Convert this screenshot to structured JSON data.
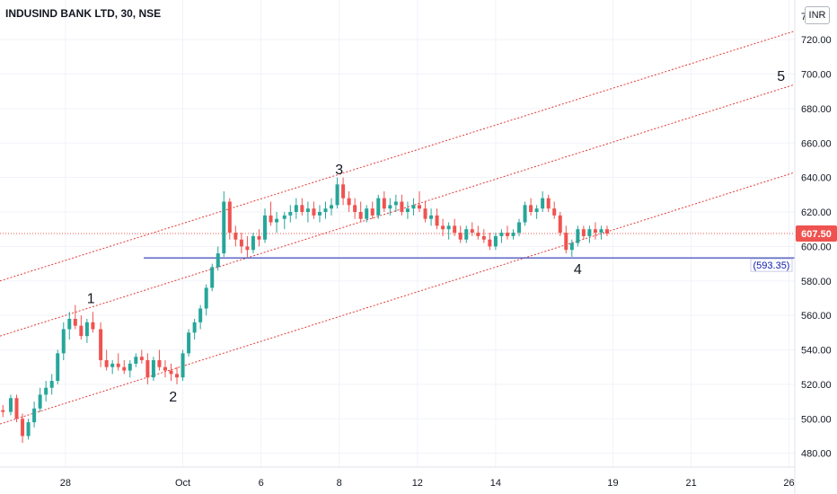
{
  "header": {
    "title": "INDUSIND BANK LTD, 30, NSE",
    "currency": "INR"
  },
  "colors": {
    "up": "#26a69a",
    "down": "#ef5350",
    "channel": "#e53935",
    "support": "#0d1bab",
    "price_badge": "#ef5350"
  },
  "chart_data": {
    "type": "candlestick",
    "ylim": [
      472,
      743
    ],
    "y_ticks": [
      480,
      500,
      520,
      540,
      560,
      580,
      600,
      620,
      640,
      660,
      680,
      700,
      720
    ],
    "y_tick_labels": [
      "480.00",
      "500.00",
      "520.00",
      "540.00",
      "560.00",
      "580.00",
      "600.00",
      "620.00",
      "640.00",
      "660.00",
      "680.00",
      "700.00",
      "720.00"
    ],
    "y_top_partial_label": "7",
    "xlim": [
      -3.35,
      37.3
    ],
    "x_ticks": [
      {
        "label": "28",
        "t": 0
      },
      {
        "label": "Oct",
        "t": 6
      },
      {
        "label": "6",
        "t": 10
      },
      {
        "label": "8",
        "t": 14
      },
      {
        "label": "12",
        "t": 18
      },
      {
        "label": "14",
        "t": 22
      },
      {
        "label": "19",
        "t": 28
      },
      {
        "label": "21",
        "t": 32
      },
      {
        "label": "26",
        "t": 37
      }
    ],
    "series": [
      {
        "values": [
          [
            -3.2,
            505,
            508,
            501,
            504
          ],
          [
            -2.8,
            504,
            514,
            502,
            512
          ],
          [
            -2.5,
            512,
            514,
            498,
            500
          ],
          [
            -2.2,
            500,
            503,
            486,
            490
          ],
          [
            -1.9,
            490,
            500,
            488,
            498
          ],
          [
            -1.6,
            498,
            510,
            495,
            506
          ],
          [
            -1.3,
            506,
            518,
            504,
            514
          ],
          [
            -1.0,
            514,
            522,
            510,
            518
          ],
          [
            -0.7,
            518,
            526,
            514,
            522
          ],
          [
            -0.4,
            522,
            540,
            520,
            538
          ],
          [
            -0.1,
            538,
            556,
            534,
            552
          ],
          [
            0.2,
            552,
            562,
            546,
            558
          ],
          [
            0.5,
            558,
            566,
            552,
            554
          ],
          [
            0.8,
            554,
            560,
            546,
            548
          ],
          [
            1.1,
            548,
            558,
            544,
            556
          ],
          [
            1.4,
            556,
            562,
            550,
            552
          ],
          [
            1.8,
            552,
            556,
            530,
            534
          ],
          [
            2.1,
            534,
            540,
            528,
            530
          ],
          [
            2.4,
            530,
            534,
            526,
            532
          ],
          [
            2.7,
            532,
            538,
            528,
            530
          ],
          [
            3.0,
            530,
            534,
            526,
            528
          ],
          [
            3.3,
            528,
            534,
            524,
            532
          ],
          [
            3.6,
            532,
            538,
            530,
            536
          ],
          [
            3.9,
            536,
            540,
            532,
            534
          ],
          [
            4.2,
            534,
            538,
            520,
            524
          ],
          [
            4.5,
            524,
            536,
            522,
            534
          ],
          [
            4.8,
            534,
            540,
            528,
            530
          ],
          [
            5.1,
            530,
            534,
            524,
            528
          ],
          [
            5.4,
            528,
            532,
            522,
            526
          ],
          [
            5.7,
            526,
            530,
            520,
            524
          ],
          [
            6.0,
            524,
            540,
            522,
            538
          ],
          [
            6.3,
            538,
            552,
            536,
            550
          ],
          [
            6.6,
            550,
            558,
            546,
            556
          ],
          [
            6.9,
            556,
            566,
            552,
            564
          ],
          [
            7.2,
            564,
            578,
            560,
            576
          ],
          [
            7.5,
            576,
            590,
            574,
            588
          ],
          [
            7.8,
            588,
            600,
            586,
            596
          ],
          [
            8.1,
            596,
            632,
            594,
            626
          ],
          [
            8.4,
            626,
            628,
            604,
            608
          ],
          [
            8.7,
            608,
            612,
            600,
            604
          ],
          [
            9.0,
            604,
            608,
            596,
            600
          ],
          [
            9.3,
            600,
            606,
            594,
            598
          ],
          [
            9.6,
            598,
            608,
            596,
            606
          ],
          [
            9.9,
            606,
            610,
            600,
            604
          ],
          [
            10.2,
            604,
            622,
            602,
            618
          ],
          [
            10.5,
            618,
            626,
            612,
            614
          ],
          [
            10.8,
            614,
            620,
            608,
            616
          ],
          [
            11.2,
            616,
            620,
            610,
            618
          ],
          [
            11.5,
            618,
            624,
            614,
            620
          ],
          [
            11.8,
            620,
            628,
            616,
            624
          ],
          [
            12.1,
            624,
            628,
            618,
            620
          ],
          [
            12.4,
            620,
            626,
            614,
            622
          ],
          [
            12.7,
            622,
            626,
            616,
            618
          ],
          [
            13.0,
            618,
            624,
            614,
            620
          ],
          [
            13.3,
            620,
            626,
            616,
            622
          ],
          [
            13.6,
            622,
            628,
            618,
            624
          ],
          [
            13.9,
            624,
            640,
            622,
            636
          ],
          [
            14.2,
            636,
            640,
            624,
            628
          ],
          [
            14.5,
            628,
            632,
            620,
            624
          ],
          [
            14.8,
            624,
            628,
            616,
            620
          ],
          [
            15.1,
            620,
            626,
            614,
            616
          ],
          [
            15.4,
            616,
            624,
            614,
            622
          ],
          [
            15.7,
            622,
            626,
            616,
            618
          ],
          [
            16.0,
            618,
            630,
            616,
            628
          ],
          [
            16.3,
            628,
            632,
            620,
            622
          ],
          [
            16.6,
            622,
            628,
            618,
            624
          ],
          [
            16.9,
            624,
            630,
            620,
            626
          ],
          [
            17.2,
            626,
            630,
            618,
            620
          ],
          [
            17.5,
            620,
            626,
            616,
            622
          ],
          [
            17.8,
            622,
            628,
            618,
            624
          ],
          [
            18.1,
            624,
            632,
            620,
            622
          ],
          [
            18.4,
            622,
            626,
            614,
            616
          ],
          [
            18.7,
            616,
            622,
            612,
            618
          ],
          [
            19.0,
            618,
            622,
            610,
            612
          ],
          [
            19.3,
            612,
            616,
            606,
            610
          ],
          [
            19.6,
            610,
            614,
            604,
            612
          ],
          [
            19.9,
            612,
            616,
            606,
            608
          ],
          [
            20.2,
            608,
            612,
            602,
            604
          ],
          [
            20.5,
            604,
            612,
            602,
            610
          ],
          [
            20.8,
            610,
            614,
            606,
            608
          ],
          [
            21.1,
            608,
            612,
            604,
            606
          ],
          [
            21.4,
            606,
            610,
            602,
            604
          ],
          [
            21.7,
            604,
            608,
            598,
            600
          ],
          [
            22.0,
            600,
            608,
            598,
            606
          ],
          [
            22.3,
            606,
            610,
            602,
            608
          ],
          [
            22.6,
            608,
            612,
            604,
            606
          ],
          [
            22.9,
            606,
            610,
            604,
            608
          ],
          [
            23.2,
            608,
            616,
            606,
            614
          ],
          [
            23.5,
            614,
            626,
            612,
            624
          ],
          [
            23.8,
            624,
            628,
            618,
            620
          ],
          [
            24.1,
            620,
            624,
            616,
            622
          ],
          [
            24.4,
            622,
            632,
            620,
            628
          ],
          [
            24.7,
            628,
            630,
            620,
            622
          ],
          [
            25.0,
            622,
            626,
            616,
            618
          ],
          [
            25.3,
            618,
            620,
            606,
            608
          ],
          [
            25.6,
            608,
            612,
            596,
            598
          ],
          [
            25.9,
            598,
            604,
            594,
            602
          ],
          [
            26.2,
            602,
            612,
            600,
            610
          ],
          [
            26.5,
            610,
            612,
            604,
            606
          ],
          [
            26.8,
            606,
            612,
            602,
            610
          ],
          [
            27.1,
            610,
            614,
            604,
            608
          ],
          [
            27.4,
            608,
            612,
            604,
            610
          ],
          [
            27.7,
            610,
            612,
            606,
            607.5
          ]
        ]
      }
    ],
    "channel_lines": [
      {
        "from": [
          -3.35,
          580
        ],
        "to": [
          37.3,
          725
        ]
      },
      {
        "from": [
          -3.35,
          548
        ],
        "to": [
          37.3,
          694
        ]
      },
      {
        "from": [
          -3.35,
          497
        ],
        "to": [
          37.3,
          643
        ]
      }
    ],
    "support_line": {
      "value": 593.35,
      "label": "(593.35)",
      "from_t": 4.0
    },
    "current_price": {
      "value": 607.5,
      "label": "607.50"
    },
    "wave_labels": [
      {
        "text": "1",
        "t": 1.3,
        "price": 567
      },
      {
        "text": "2",
        "t": 5.5,
        "price": 510
      },
      {
        "text": "3",
        "t": 14.0,
        "price": 642
      },
      {
        "text": "4",
        "t": 26.2,
        "price": 584
      },
      {
        "text": "5",
        "t": 36.6,
        "price": 696
      }
    ]
  }
}
